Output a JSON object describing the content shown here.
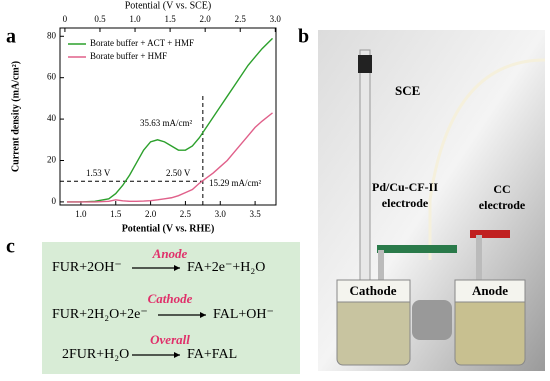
{
  "chart_data": {
    "type": "line",
    "x2label": "Potential (V vs. SCE)",
    "xlabel": "Potential (V vs. RHE)",
    "ylabel": "Current density (mA/cm²)",
    "x": [
      0.8,
      1.0,
      1.2,
      1.4,
      1.5,
      1.6,
      1.7,
      1.8,
      1.9,
      2.0,
      2.1,
      2.2,
      2.3,
      2.4,
      2.5,
      2.6,
      2.7,
      2.8,
      2.9,
      3.0,
      3.1,
      3.2,
      3.3,
      3.4,
      3.5,
      3.6,
      3.75
    ],
    "series": [
      {
        "name": "Borate buffer + ACT + HMF",
        "color": "#2ca02c",
        "values": [
          0,
          0,
          0.3,
          1.5,
          4,
          8,
          13,
          19,
          25,
          29,
          30,
          29,
          27,
          25,
          25,
          27,
          31,
          36,
          41,
          46,
          51,
          56,
          61,
          66,
          70,
          74,
          79
        ]
      },
      {
        "name": "Borate buffer + HMF",
        "color": "#e0608a",
        "values": [
          0,
          0,
          0,
          0.3,
          1,
          0.5,
          0.3,
          0.3,
          0.4,
          0.6,
          1,
          1.5,
          2,
          3,
          4.5,
          6,
          9,
          11.5,
          14,
          17,
          20,
          24,
          28,
          32,
          36,
          39,
          43
        ]
      }
    ],
    "xlim": [
      0.7,
      3.8
    ],
    "xticks": [
      {
        "value": 1.0,
        "label": "1.0"
      },
      1.5,
      {
        "value": 2.0,
        "label": "2.0"
      },
      2.5,
      {
        "value": 3.0,
        "label": "3.0"
      },
      3.5
    ],
    "x2lim": [
      -0.07,
      3.01
    ],
    "x2ticks": [
      0,
      0.5,
      {
        "value": 1.0,
        "label": "1.0"
      },
      1.5,
      {
        "value": 2.0,
        "label": "2.0"
      },
      2.5,
      {
        "value": 3.0,
        "label": "3.0"
      }
    ],
    "ylim": [
      -1.5,
      84
    ],
    "yticks": [
      0,
      20,
      40,
      60,
      80
    ],
    "vline": 2.75,
    "hline": 10,
    "legend": "upper left",
    "annotations": [
      "35.63 mA/cm²",
      "15.29 mA/cm²",
      "1.53 V",
      "2.50 V"
    ]
  },
  "panels": [
    "a",
    "b",
    "c"
  ],
  "photo": {
    "labels": [
      "SCE",
      "Pd/Cu-CF-II",
      "electrode",
      "CC",
      "electrode",
      "Cathode",
      "Anode"
    ]
  },
  "scheme": {
    "headers": [
      "Anode",
      "Cathode",
      "Overall"
    ],
    "reactions": [
      [
        "FUR+2OH⁻",
        "FA+2e⁻+H₂O"
      ],
      [
        "FUR+2H₂O+2e⁻",
        "FAL+OH⁻"
      ],
      [
        "2FUR+H₂O",
        "FA+FAL"
      ]
    ]
  }
}
